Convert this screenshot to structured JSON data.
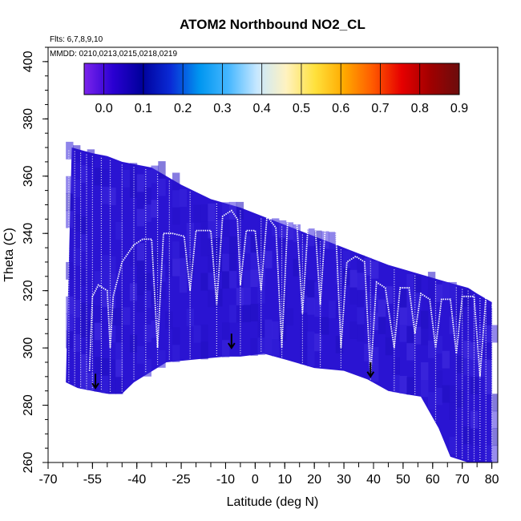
{
  "chart_data": {
    "type": "heatmap",
    "title": "ATOM2 Northbound NO2_CL",
    "flights_note": "Flts: 6,7,8,9,10",
    "dates_note": "MMDD: 0210,0213,0215,0218,0219",
    "xlabel": "Latitude (deg N)",
    "ylabel": "Theta (C)",
    "xlim": [
      -70,
      82
    ],
    "ylim": [
      260,
      405
    ],
    "x_tick_labels": [
      "-70",
      "-55",
      "-40",
      "-25",
      "-10",
      "0",
      "10",
      "20",
      "30",
      "40",
      "50",
      "60",
      "70",
      "80"
    ],
    "x_tick_values": [
      -70,
      -55,
      -40,
      -25,
      -10,
      0,
      10,
      20,
      30,
      40,
      50,
      60,
      70,
      80
    ],
    "y_tick_labels": [
      "260",
      "280",
      "300",
      "320",
      "340",
      "360",
      "380",
      "400"
    ],
    "y_tick_values": [
      260,
      280,
      300,
      320,
      340,
      360,
      380,
      400
    ],
    "colorbar": {
      "min": -0.05,
      "max": 0.9,
      "tick_labels": [
        "0.0",
        "0.1",
        "0.2",
        "0.3",
        "0.4",
        "0.5",
        "0.6",
        "0.7",
        "0.8",
        "0.9"
      ],
      "tick_values": [
        0.0,
        0.1,
        0.2,
        0.3,
        0.4,
        0.5,
        0.6,
        0.7,
        0.8,
        0.9
      ],
      "colors": [
        "#7b24ec",
        "#2a00d2",
        "#00009c",
        "#0a2bd6",
        "#0096f0",
        "#46b7ff",
        "#c8e8ff",
        "#fff2c0",
        "#ffe13c",
        "#ffaa00",
        "#ff5a00",
        "#e60000",
        "#a00000",
        "#6b0d0d"
      ]
    },
    "field_color": "#2a14d2",
    "upper_boundary": [
      [
        -62,
        370
      ],
      [
        -55,
        368
      ],
      [
        -50,
        367
      ],
      [
        -45,
        365
      ],
      [
        -35,
        363
      ],
      [
        -25,
        357
      ],
      [
        -15,
        352
      ],
      [
        -5,
        349
      ],
      [
        5,
        345
      ],
      [
        15,
        341
      ],
      [
        25,
        337
      ],
      [
        35,
        333
      ],
      [
        45,
        329
      ],
      [
        55,
        326
      ],
      [
        65,
        323
      ],
      [
        72,
        321
      ],
      [
        75,
        319
      ],
      [
        80,
        316
      ]
    ],
    "lower_boundary": [
      [
        -64,
        288
      ],
      [
        -60,
        286
      ],
      [
        -55,
        285
      ],
      [
        -50,
        284
      ],
      [
        -45,
        284
      ],
      [
        -41,
        288
      ],
      [
        -30,
        295
      ],
      [
        -20,
        296
      ],
      [
        -10,
        297
      ],
      [
        -5,
        297
      ],
      [
        3,
        298
      ],
      [
        10,
        296
      ],
      [
        20,
        293
      ],
      [
        30,
        292
      ],
      [
        38,
        289
      ],
      [
        45,
        285
      ],
      [
        50,
        284
      ],
      [
        56,
        283
      ],
      [
        62,
        272
      ],
      [
        66,
        262
      ],
      [
        72,
        260
      ],
      [
        80,
        260
      ]
    ],
    "tropopause_trace": [
      [
        -56,
        292
      ],
      [
        -55,
        318
      ],
      [
        -53,
        322
      ],
      [
        -50,
        320
      ],
      [
        -49,
        300
      ],
      [
        -48,
        318
      ],
      [
        -45,
        330
      ],
      [
        -41,
        336
      ],
      [
        -38,
        338
      ],
      [
        -35,
        338
      ],
      [
        -33,
        300
      ],
      [
        -31,
        340
      ],
      [
        -28,
        340
      ],
      [
        -24,
        339
      ],
      [
        -22,
        320
      ],
      [
        -20,
        341
      ],
      [
        -15,
        341
      ],
      [
        -13,
        315
      ],
      [
        -11,
        346
      ],
      [
        -8,
        348
      ],
      [
        -6,
        345
      ],
      [
        -5,
        322
      ],
      [
        -3,
        341
      ],
      [
        0,
        341
      ],
      [
        2,
        320
      ],
      [
        4,
        346
      ],
      [
        7,
        342
      ],
      [
        9,
        300
      ],
      [
        11,
        345
      ],
      [
        14,
        345
      ],
      [
        16,
        312
      ],
      [
        18,
        345
      ],
      [
        20,
        347
      ],
      [
        22,
        315
      ],
      [
        24,
        347
      ],
      [
        27,
        347
      ],
      [
        29,
        300
      ],
      [
        31,
        330
      ],
      [
        34,
        332
      ],
      [
        37,
        330
      ],
      [
        39,
        290
      ],
      [
        41,
        323
      ],
      [
        44,
        321
      ],
      [
        47,
        300
      ],
      [
        49,
        321
      ],
      [
        52,
        321
      ],
      [
        54,
        305
      ],
      [
        56,
        319
      ],
      [
        59,
        317
      ],
      [
        61,
        300
      ],
      [
        63,
        317
      ],
      [
        66,
        317
      ],
      [
        68,
        298
      ],
      [
        70,
        318
      ],
      [
        74,
        318
      ],
      [
        76,
        290
      ],
      [
        78,
        318
      ],
      [
        80,
        318
      ]
    ],
    "profile_latitudes": [
      -67,
      -65,
      -63,
      -61,
      -59,
      -57,
      -55,
      -52,
      -49,
      -45,
      -41,
      -37,
      -33,
      -29,
      -22,
      -13,
      -5,
      2,
      9,
      16,
      22,
      29,
      39,
      47,
      54,
      61,
      68,
      70,
      72,
      74,
      76,
      78,
      80
    ],
    "arrows": [
      [
        -54,
        286
      ],
      [
        -8,
        300
      ],
      [
        39,
        290
      ]
    ]
  }
}
